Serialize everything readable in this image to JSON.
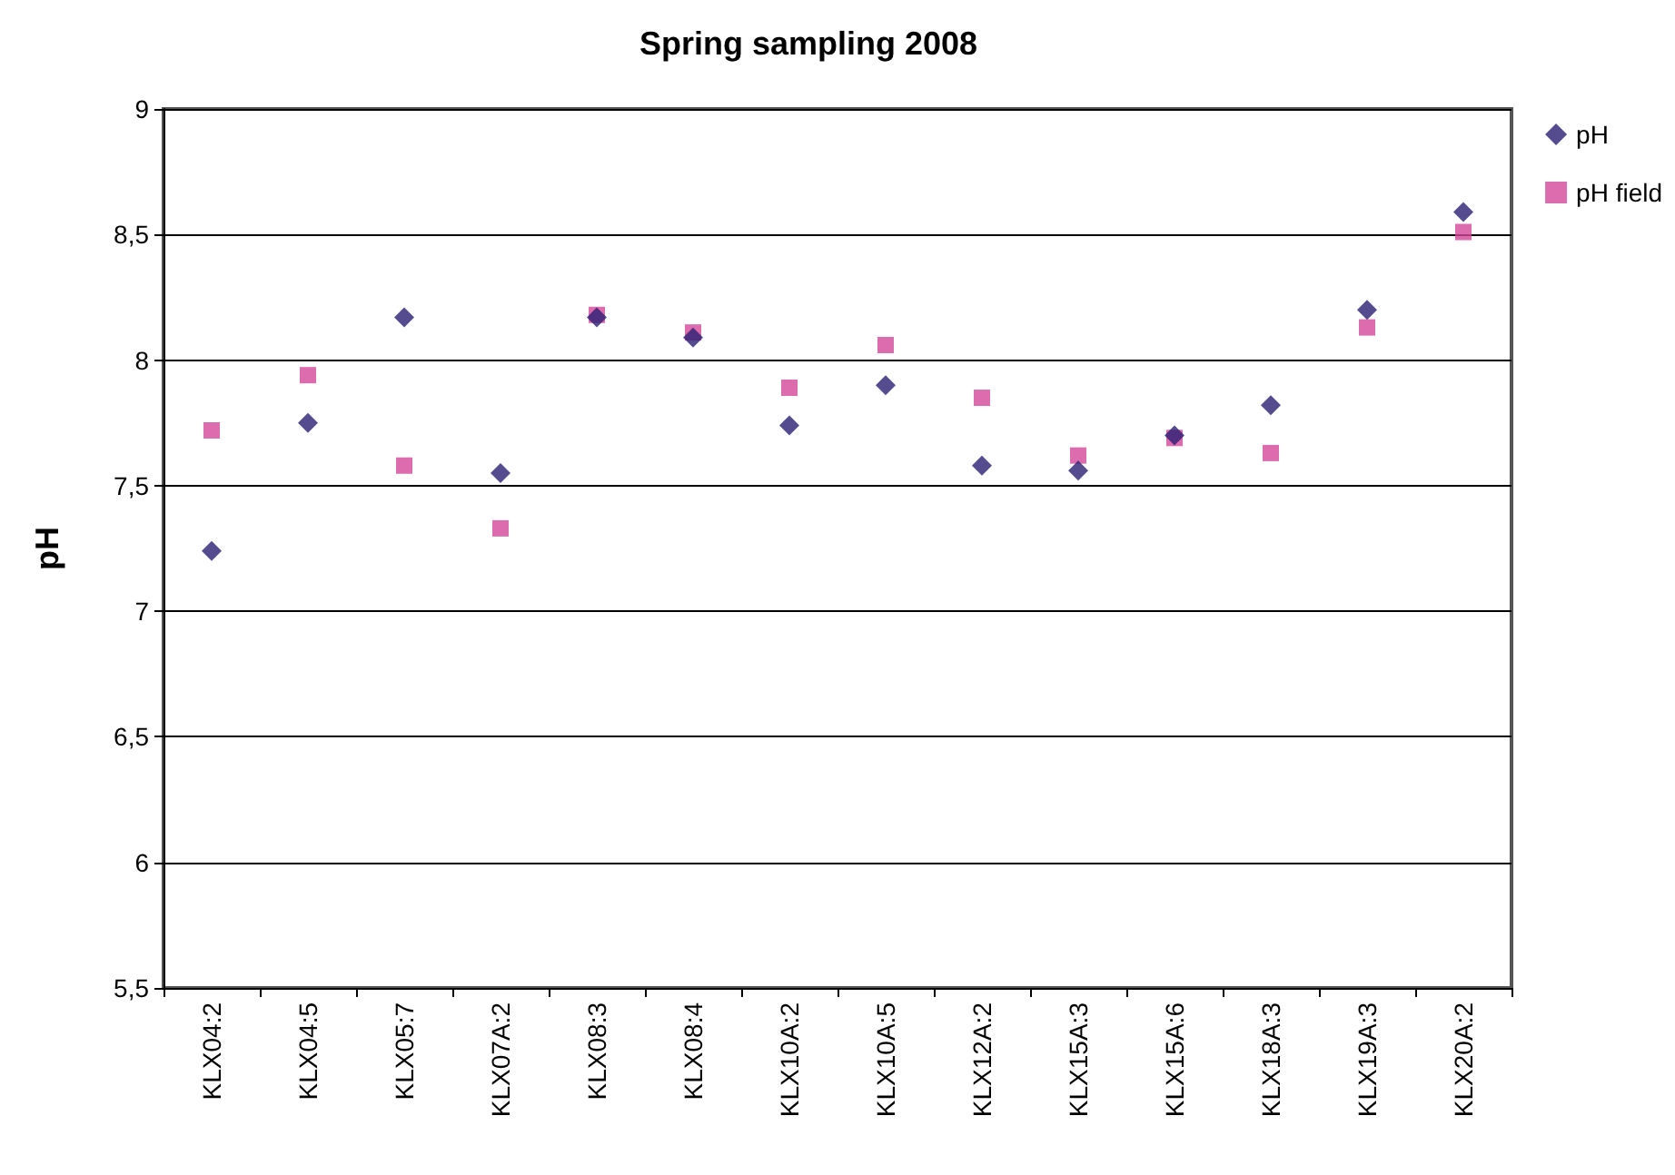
{
  "chart_data": {
    "type": "scatter",
    "title": "Spring sampling 2008",
    "ylabel": "pH",
    "categories": [
      "KLX04:2",
      "KLX04:5",
      "KLX05:7",
      "KLX07A:2",
      "KLX08:3",
      "KLX08:4",
      "KLX10A:2",
      "KLX10A:5",
      "KLX12A:2",
      "KLX15A:3",
      "KLX15A:6",
      "KLX18A:3",
      "KLX19A:3",
      "KLX20A:2"
    ],
    "series": [
      {
        "name": "pH",
        "color": "#2b1f73",
        "marker": "diamond",
        "values": [
          7.24,
          7.75,
          8.17,
          7.55,
          8.17,
          8.09,
          7.74,
          7.9,
          7.58,
          7.56,
          7.7,
          7.82,
          8.2,
          8.59
        ]
      },
      {
        "name": "pH field",
        "color": "#d4479a",
        "marker": "square",
        "values": [
          7.72,
          7.94,
          7.58,
          7.33,
          8.18,
          8.11,
          7.89,
          8.06,
          7.85,
          7.62,
          7.69,
          7.63,
          8.13,
          8.51
        ]
      }
    ],
    "ylim": [
      5.5,
      9
    ],
    "yticks": [
      {
        "value": 5.5,
        "label": "5,5"
      },
      6,
      {
        "value": 6.5,
        "label": "6,5"
      },
      7,
      {
        "value": 7.5,
        "label": "7,5"
      },
      8,
      {
        "value": 8.5,
        "label": "8,5"
      },
      9
    ],
    "grid": "y",
    "legend": "top right"
  }
}
